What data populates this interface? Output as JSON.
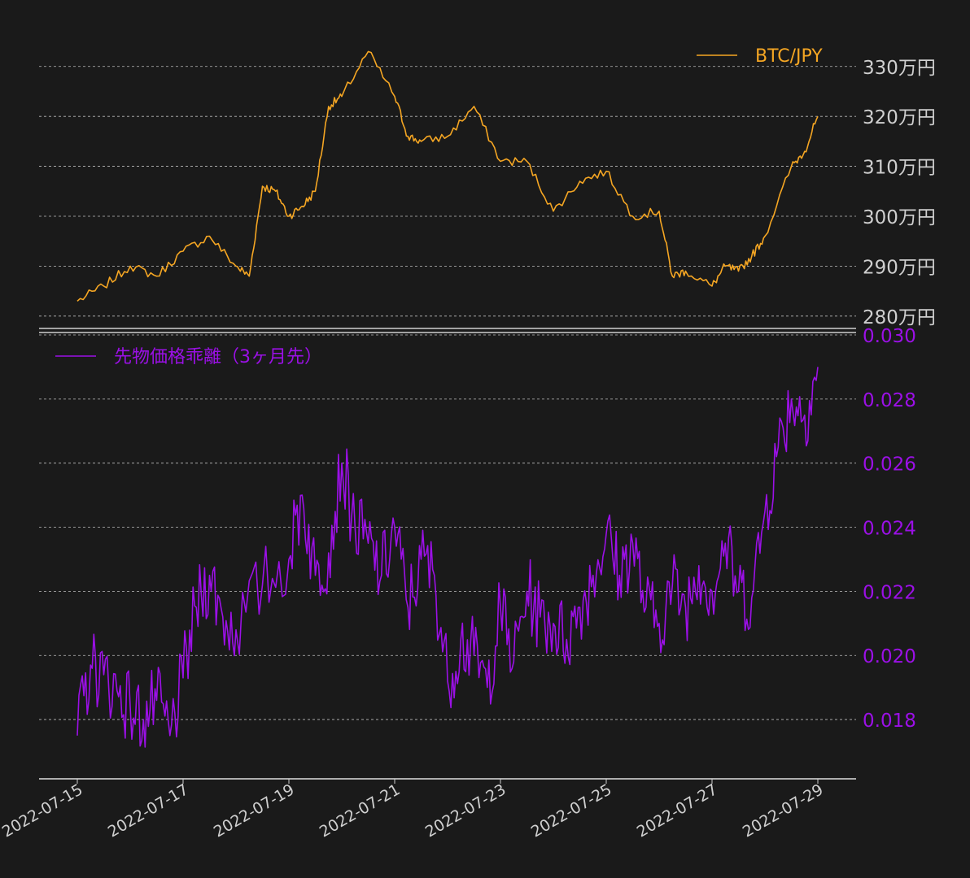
{
  "chart_data": [
    {
      "type": "line",
      "title": "",
      "xlabel": "",
      "ylabel": "",
      "ylim": [
        2785000,
        3355000
      ],
      "yticks": [
        2800000,
        2900000,
        3000000,
        3100000,
        3200000,
        3300000
      ],
      "ytick_labels": [
        "280万円",
        "290万円",
        "300万円",
        "310万円",
        "320万円",
        "330万円"
      ],
      "grid": true,
      "legend_position": "top-right",
      "color": "#f5a623",
      "series": [
        {
          "name": "BTC/JPY",
          "x": [
            "2022-07-15 00:00",
            "2022-07-15 12:00",
            "2022-07-16 00:00",
            "2022-07-16 12:00",
            "2022-07-17 00:00",
            "2022-07-17 12:00",
            "2022-07-18 00:00",
            "2022-07-18 06:00",
            "2022-07-18 12:00",
            "2022-07-18 18:00",
            "2022-07-19 00:00",
            "2022-07-19 06:00",
            "2022-07-19 12:00",
            "2022-07-19 18:00",
            "2022-07-20 00:00",
            "2022-07-20 12:00",
            "2022-07-21 00:00",
            "2022-07-21 06:00",
            "2022-07-21 12:00",
            "2022-07-22 00:00",
            "2022-07-22 12:00",
            "2022-07-23 00:00",
            "2022-07-23 12:00",
            "2022-07-24 00:00",
            "2022-07-24 12:00",
            "2022-07-25 00:00",
            "2022-07-25 12:00",
            "2022-07-26 00:00",
            "2022-07-26 06:00",
            "2022-07-26 12:00",
            "2022-07-27 00:00",
            "2022-07-27 06:00",
            "2022-07-27 12:00",
            "2022-07-27 18:00",
            "2022-07-28 00:00",
            "2022-07-28 12:00",
            "2022-07-28 18:00",
            "2022-07-29 00:00"
          ],
          "values": [
            2830000,
            2860000,
            2900000,
            2880000,
            2930000,
            2960000,
            2900000,
            2880000,
            3060000,
            3050000,
            3000000,
            3020000,
            3050000,
            3220000,
            3240000,
            3330000,
            3240000,
            3160000,
            3150000,
            3160000,
            3220000,
            3110000,
            3110000,
            3010000,
            3070000,
            3090000,
            3000000,
            3010000,
            2880000,
            2890000,
            2860000,
            2900000,
            2890000,
            2920000,
            2960000,
            3100000,
            3130000,
            3200000
          ]
        }
      ]
    },
    {
      "type": "line",
      "title": "",
      "xlabel": "",
      "ylabel": "",
      "ylim": [
        0.01615,
        0.03
      ],
      "yticks": [
        0.018,
        0.02,
        0.022,
        0.024,
        0.026,
        0.028,
        0.03
      ],
      "ytick_labels": [
        "0.018",
        "0.020",
        "0.022",
        "0.024",
        "0.026",
        "0.028",
        "0.030"
      ],
      "grid": true,
      "legend_position": "top-left",
      "color": "#9b10e6",
      "series": [
        {
          "name": "先物価格乖離（3ヶ月先）",
          "x": [
            "2022-07-15 00:00",
            "2022-07-15 06:00",
            "2022-07-15 12:00",
            "2022-07-15 18:00",
            "2022-07-16 00:00",
            "2022-07-16 06:00",
            "2022-07-16 12:00",
            "2022-07-16 18:00",
            "2022-07-17 00:00",
            "2022-07-17 06:00",
            "2022-07-17 12:00",
            "2022-07-17 18:00",
            "2022-07-18 00:00",
            "2022-07-18 12:00",
            "2022-07-19 00:00",
            "2022-07-19 06:00",
            "2022-07-19 12:00",
            "2022-07-19 18:00",
            "2022-07-20 00:00",
            "2022-07-20 06:00",
            "2022-07-20 12:00",
            "2022-07-20 18:00",
            "2022-07-21 00:00",
            "2022-07-21 06:00",
            "2022-07-21 12:00",
            "2022-07-21 18:00",
            "2022-07-22 00:00",
            "2022-07-22 06:00",
            "2022-07-22 12:00",
            "2022-07-22 18:00",
            "2022-07-23 00:00",
            "2022-07-23 06:00",
            "2022-07-23 12:00",
            "2022-07-23 18:00",
            "2022-07-24 00:00",
            "2022-07-24 06:00",
            "2022-07-24 12:00",
            "2022-07-24 18:00",
            "2022-07-25 00:00",
            "2022-07-25 06:00",
            "2022-07-25 12:00",
            "2022-07-25 18:00",
            "2022-07-26 00:00",
            "2022-07-26 06:00",
            "2022-07-26 12:00",
            "2022-07-26 18:00",
            "2022-07-27 00:00",
            "2022-07-27 06:00",
            "2022-07-27 12:00",
            "2022-07-27 18:00",
            "2022-07-28 00:00",
            "2022-07-28 06:00",
            "2022-07-28 12:00",
            "2022-07-28 18:00",
            "2022-07-29 00:00"
          ],
          "values": [
            0.0175,
            0.0197,
            0.0194,
            0.0189,
            0.0184,
            0.018,
            0.0186,
            0.0175,
            0.0193,
            0.0215,
            0.0225,
            0.0212,
            0.0208,
            0.0222,
            0.023,
            0.025,
            0.0225,
            0.0232,
            0.026,
            0.024,
            0.0235,
            0.0225,
            0.024,
            0.0215,
            0.023,
            0.0225,
            0.0192,
            0.0205,
            0.02,
            0.019,
            0.0215,
            0.0198,
            0.022,
            0.0212,
            0.021,
            0.0205,
            0.0215,
            0.0225,
            0.0238,
            0.0225,
            0.0235,
            0.0215,
            0.021,
            0.0222,
            0.0215,
            0.0228,
            0.022,
            0.0235,
            0.022,
            0.0218,
            0.0245,
            0.0265,
            0.028,
            0.0275,
            0.029
          ]
        }
      ]
    }
  ],
  "x_ticks": [
    "2022-07-15",
    "2022-07-17",
    "2022-07-19",
    "2022-07-21",
    "2022-07-23",
    "2022-07-25",
    "2022-07-27",
    "2022-07-29"
  ]
}
